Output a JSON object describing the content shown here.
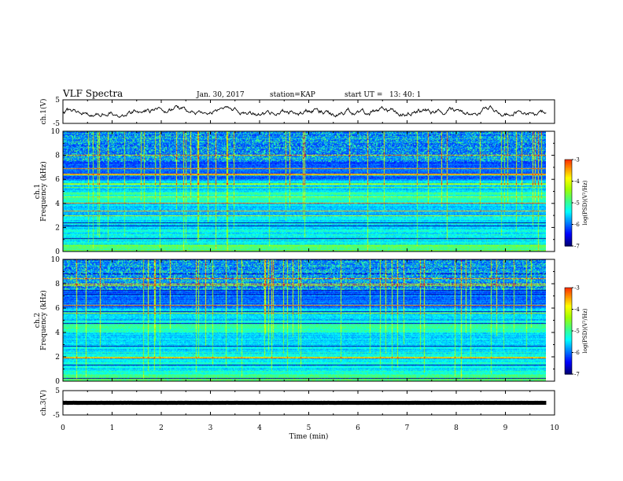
{
  "header": {
    "title": "VLF Spectra",
    "date": "Jan. 30, 2017",
    "station": "station=KAP",
    "start": "start UT =   13: 40: 1"
  },
  "chart_data": {
    "type": "heatmap",
    "xlabel": "Time (min)",
    "xlim": [
      0,
      10
    ],
    "xticks": [
      "0",
      "1",
      "2",
      "3",
      "4",
      "5",
      "6",
      "7",
      "8",
      "9",
      "10"
    ],
    "panels": [
      {
        "id": "ch1-voltage",
        "kind": "line",
        "ylabel": "ch.1(V)",
        "ylim": [
          -5,
          5
        ],
        "yticks": [
          "5",
          "-5"
        ],
        "series_note": "",
        "trace_mean": 0,
        "trace_amplitude": 2.5,
        "data_end_min": 9.83
      },
      {
        "id": "ch1-spectrogram",
        "kind": "spectrogram",
        "ylabel": "ch.1\nFrequency (kHz)",
        "ylim": [
          0,
          10
        ],
        "yticks": [
          "0",
          "2",
          "4",
          "6",
          "8",
          "10"
        ],
        "data_end_min": 9.83,
        "colorbar": {
          "label": "log(PSD)(V²/Hz)",
          "range": [
            -7,
            -3
          ],
          "ticks": [
            "-3",
            "-4",
            "-5",
            "-6",
            "-7"
          ]
        }
      },
      {
        "id": "ch2-spectrogram",
        "kind": "spectrogram",
        "ylabel": "ch.2\nFrequency (kHz)",
        "ylim": [
          0,
          10
        ],
        "yticks": [
          "0",
          "2",
          "4",
          "6",
          "8",
          "10"
        ],
        "data_end_min": 9.83,
        "colorbar": {
          "label": "log(PSD)(V²/Hz)",
          "range": [
            -7,
            -3
          ],
          "ticks": [
            "-3",
            "-4",
            "-5",
            "-6",
            "-7"
          ]
        }
      },
      {
        "id": "ch3-voltage",
        "kind": "line",
        "ylabel": "ch.3(V)",
        "ylim": [
          -5,
          5
        ],
        "yticks": [
          "5",
          "-5"
        ],
        "trace_mean": 0,
        "trace_amplitude": 0.05,
        "data_end_min": 9.83
      }
    ],
    "colormap": [
      "#00007a",
      "#0000ff",
      "#0080ff",
      "#00ffff",
      "#40ff80",
      "#a0ff00",
      "#ffff00",
      "#ff8000",
      "#ff0000",
      "#ffffff"
    ]
  }
}
